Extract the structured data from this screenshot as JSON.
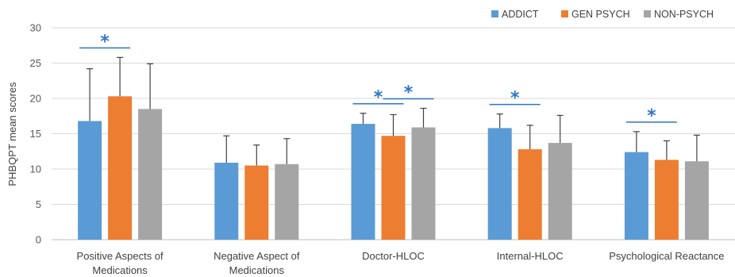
{
  "chart_data": {
    "type": "bar",
    "ylabel": "PHBQPT mean scores",
    "ylim": [
      0,
      30
    ],
    "yticks": [
      0,
      5,
      10,
      15,
      20,
      25,
      30
    ],
    "grid": true,
    "legend_position": "top-right",
    "categories": [
      [
        "Positive Aspects of",
        "Medications"
      ],
      [
        "Negative Aspect of",
        "Medications"
      ],
      [
        "Doctor-HLOC"
      ],
      [
        "Internal-HLOC"
      ],
      [
        "Psychological Reactance"
      ]
    ],
    "series": [
      {
        "name": "ADDICT",
        "color": "#5b9bd5",
        "values": [
          16.8,
          10.9,
          16.4,
          15.8,
          12.4
        ],
        "error": [
          7.4,
          3.8,
          1.5,
          2.0,
          2.9
        ]
      },
      {
        "name": "GEN PSYCH",
        "color": "#ed7d31",
        "values": [
          20.3,
          10.5,
          14.7,
          12.8,
          11.3
        ],
        "error": [
          5.5,
          2.9,
          3.0,
          3.4,
          2.7
        ]
      },
      {
        "name": "NON-PSYCH",
        "color": "#a5a5a5",
        "values": [
          18.5,
          10.7,
          15.9,
          13.7,
          11.1
        ],
        "error": [
          6.4,
          3.6,
          2.7,
          3.9,
          3.7
        ]
      }
    ],
    "significance": [
      {
        "category": 0,
        "from": 0,
        "to": 1,
        "label": "*"
      },
      {
        "category": 2,
        "from": 0,
        "to": 1,
        "label": "*"
      },
      {
        "category": 2,
        "from": 1,
        "to": 2,
        "label": "*"
      },
      {
        "category": 3,
        "from": 0,
        "to": 1,
        "label": "*"
      },
      {
        "category": 4,
        "from": 0,
        "to": 1,
        "label": "*"
      }
    ],
    "colors": {
      "grid": "#d9d9d9",
      "error_bar": "#404040",
      "significance": "#2e75c6"
    }
  }
}
